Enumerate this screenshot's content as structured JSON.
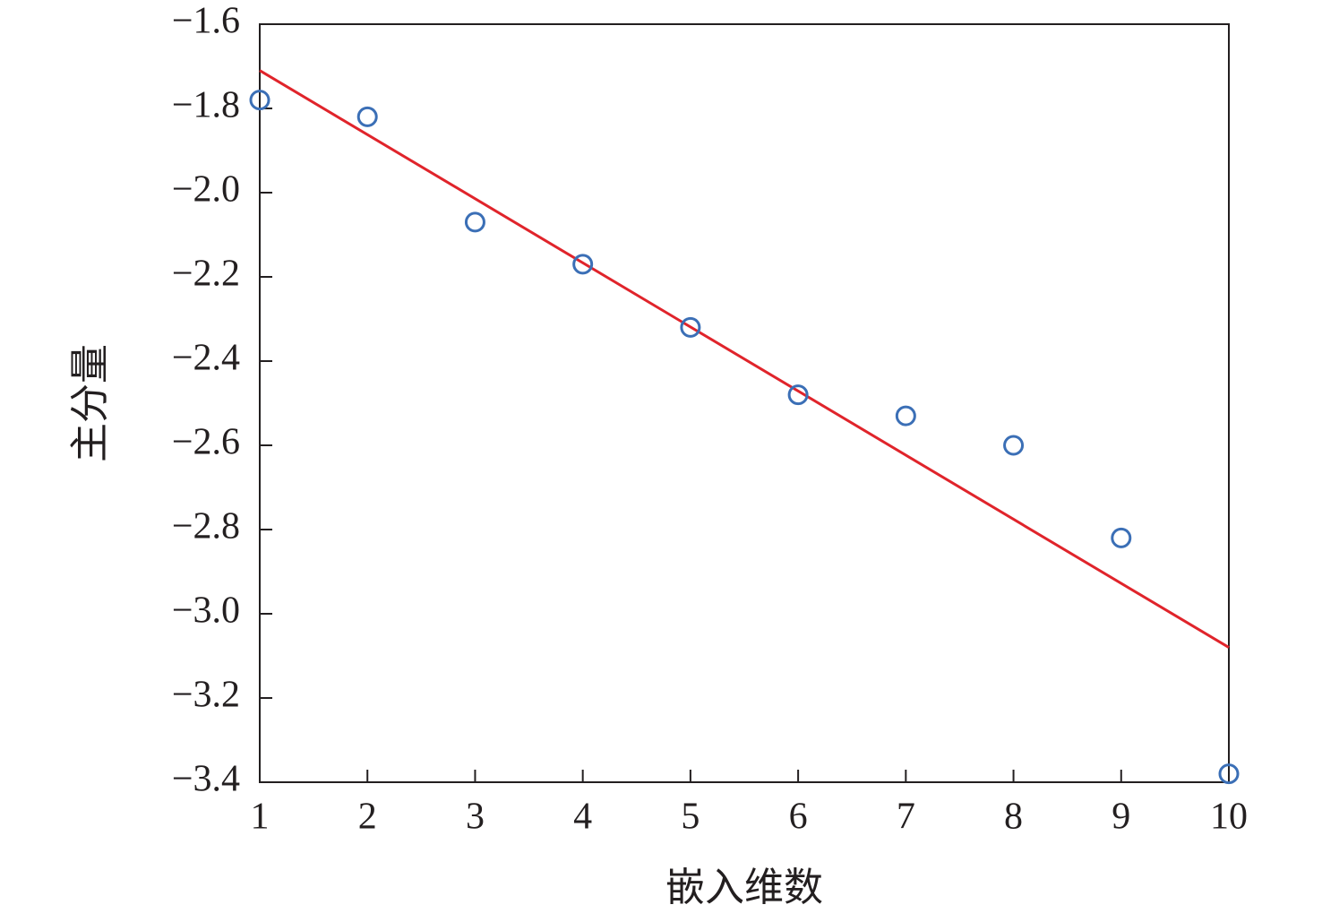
{
  "chart_data": {
    "type": "scatter",
    "x_label": "嵌入维数",
    "y_label": "主分量",
    "xlim": [
      1,
      10
    ],
    "ylim": [
      -3.4,
      -1.6
    ],
    "xticks": [
      1,
      2,
      3,
      4,
      5,
      6,
      7,
      8,
      9,
      10
    ],
    "yticks": [
      {
        "value": -3.4,
        "label": "−3.4"
      },
      {
        "value": -3.2,
        "label": "−3.2"
      },
      {
        "value": -3.0,
        "label": "−3.0"
      },
      {
        "value": -2.8,
        "label": "−2.8"
      },
      {
        "value": -2.6,
        "label": "−2.6"
      },
      {
        "value": -2.4,
        "label": "−2.4"
      },
      {
        "value": -2.2,
        "label": "−2.2"
      },
      {
        "value": -2.0,
        "label": "−2.0"
      },
      {
        "value": -1.8,
        "label": "−1.8"
      },
      {
        "value": -1.6,
        "label": "−1.6"
      }
    ],
    "series": [
      {
        "color": "#3b6fb6",
        "x": [
          1,
          2,
          3,
          4,
          5,
          6,
          7,
          8,
          9,
          10
        ],
        "values": [
          -1.78,
          -1.82,
          -2.07,
          -2.17,
          -2.32,
          -2.48,
          -2.53,
          -2.6,
          -2.82,
          -3.38
        ]
      }
    ],
    "fit": {
      "color": "#e0242b",
      "x": [
        1,
        10
      ],
      "values": [
        -1.71,
        -3.08
      ]
    }
  }
}
